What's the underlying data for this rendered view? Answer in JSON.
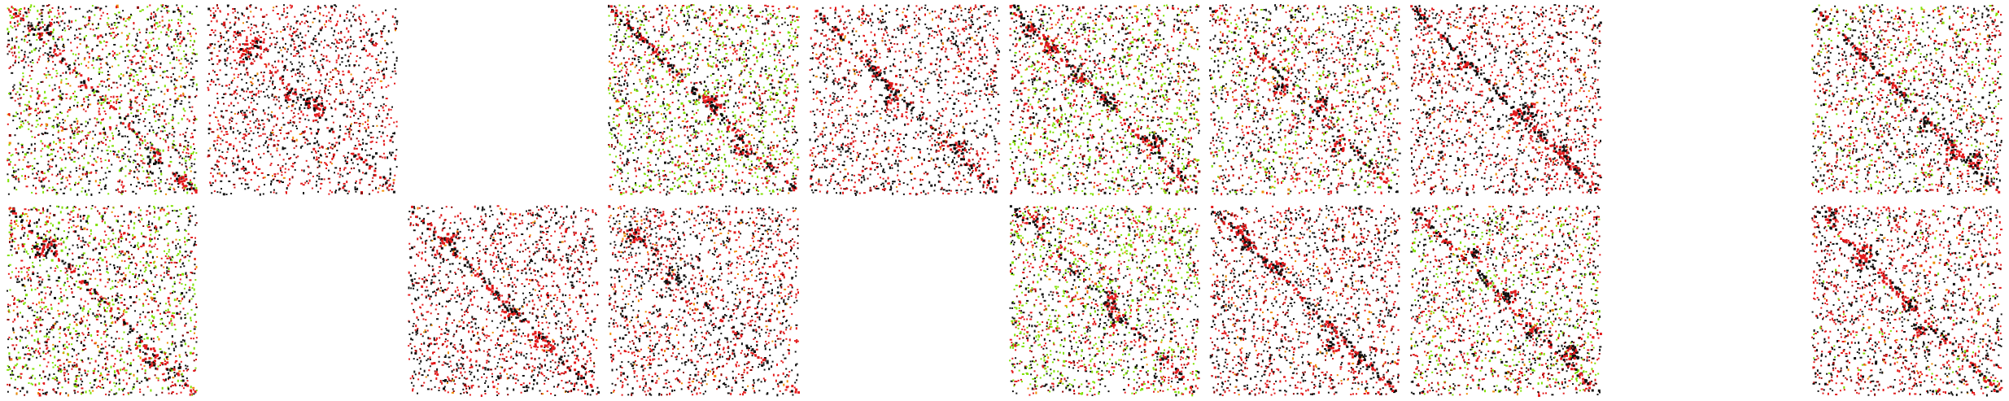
{
  "grid": {
    "rows": 2,
    "cols": 10,
    "palette": {
      "background": "#ffffff",
      "black": "#111111",
      "red": "#e31a1c",
      "dark_red": "#8b0000",
      "green": "#7fe000",
      "orange": "#f08c00"
    },
    "tiles": [
      {
        "id": "r1c1",
        "row": 1,
        "col": 1,
        "present": true,
        "green_level": 0.45,
        "density": 0.75,
        "diagonal": 0.5
      },
      {
        "id": "r1c2",
        "row": 1,
        "col": 2,
        "present": true,
        "green_level": 0.0,
        "density": 0.55,
        "diagonal": 0.3
      },
      {
        "id": "r1c3",
        "row": 1,
        "col": 3,
        "present": false
      },
      {
        "id": "r1c4",
        "row": 1,
        "col": 4,
        "present": true,
        "green_level": 0.55,
        "density": 0.9,
        "diagonal": 0.9
      },
      {
        "id": "r1c5",
        "row": 1,
        "col": 5,
        "present": true,
        "green_level": 0.0,
        "density": 0.5,
        "diagonal": 0.6
      },
      {
        "id": "r1c6",
        "row": 1,
        "col": 6,
        "present": true,
        "green_level": 0.5,
        "density": 0.85,
        "diagonal": 0.8
      },
      {
        "id": "r1c7",
        "row": 1,
        "col": 7,
        "present": true,
        "green_level": 0.25,
        "density": 0.7,
        "diagonal": 0.5
      },
      {
        "id": "r1c8",
        "row": 1,
        "col": 8,
        "present": true,
        "green_level": 0.0,
        "density": 0.6,
        "diagonal": 0.9
      },
      {
        "id": "r1c9",
        "row": 1,
        "col": 9,
        "present": false
      },
      {
        "id": "r1c10",
        "row": 1,
        "col": 10,
        "present": true,
        "green_level": 0.25,
        "density": 0.7,
        "diagonal": 0.9
      },
      {
        "id": "r2c1",
        "row": 2,
        "col": 1,
        "present": true,
        "green_level": 0.45,
        "density": 0.75,
        "diagonal": 0.6
      },
      {
        "id": "r2c2",
        "row": 2,
        "col": 2,
        "present": false
      },
      {
        "id": "r2c3",
        "row": 2,
        "col": 3,
        "present": true,
        "green_level": 0.0,
        "density": 0.6,
        "diagonal": 0.8
      },
      {
        "id": "r2c4",
        "row": 2,
        "col": 4,
        "present": true,
        "green_level": 0.0,
        "density": 0.65,
        "diagonal": 0.3
      },
      {
        "id": "r2c5",
        "row": 2,
        "col": 5,
        "present": false
      },
      {
        "id": "r2c6",
        "row": 2,
        "col": 6,
        "present": true,
        "green_level": 0.55,
        "density": 0.85,
        "diagonal": 0.5
      },
      {
        "id": "r2c7",
        "row": 2,
        "col": 7,
        "present": true,
        "green_level": 0.0,
        "density": 0.6,
        "diagonal": 0.9
      },
      {
        "id": "r2c8",
        "row": 2,
        "col": 8,
        "present": true,
        "green_level": 0.35,
        "density": 0.75,
        "diagonal": 0.8
      },
      {
        "id": "r2c9",
        "row": 2,
        "col": 9,
        "present": false
      },
      {
        "id": "r2c10",
        "row": 2,
        "col": 10,
        "present": true,
        "green_level": 0.1,
        "density": 0.65,
        "diagonal": 0.7
      }
    ]
  }
}
